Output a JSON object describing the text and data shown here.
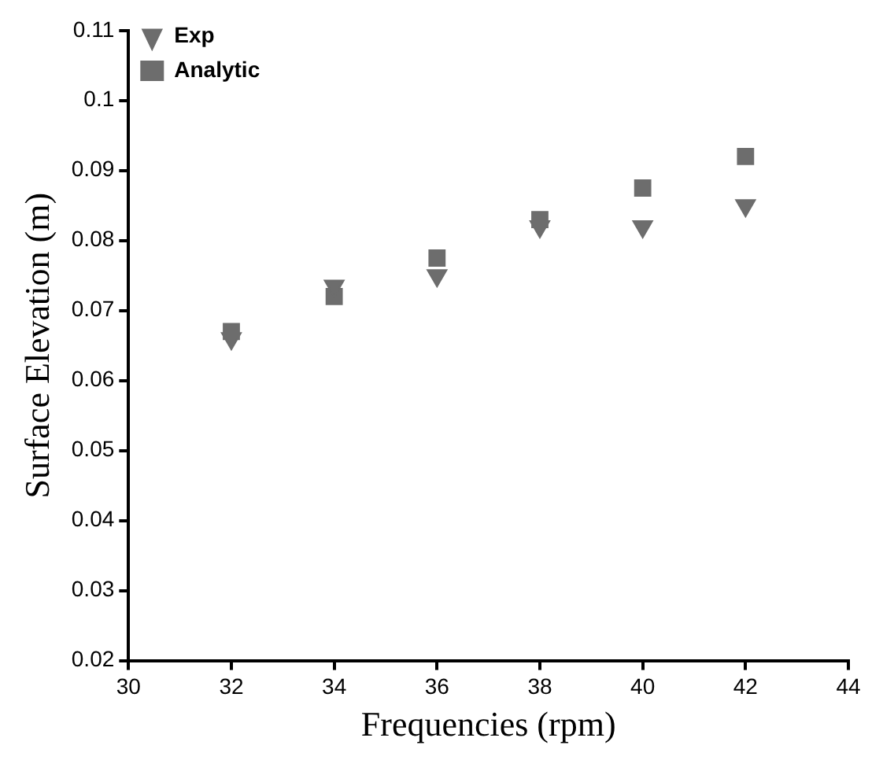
{
  "chart_data": {
    "type": "scatter",
    "xlabel": "Frequencies (rpm)",
    "ylabel": "Surface Elevation (m)",
    "x": [
      32,
      34,
      36,
      38,
      40,
      42
    ],
    "series": [
      {
        "name": "Exp",
        "color": "#6d6d6d",
        "marker": "triangle",
        "values": [
          0.066,
          0.0735,
          0.075,
          0.082,
          0.082,
          0.085
        ]
      },
      {
        "name": "Analytic",
        "color": "#6d6d6d",
        "marker": "square",
        "values": [
          0.067,
          0.072,
          0.0775,
          0.083,
          0.0875,
          0.092
        ]
      }
    ],
    "xlim": [
      30,
      44
    ],
    "xticks": [
      30,
      32,
      34,
      36,
      38,
      40,
      42,
      44
    ],
    "ylim": [
      0.02,
      0.11
    ],
    "yticks": [
      0.02,
      0.03,
      0.04,
      0.05,
      0.06,
      0.07,
      0.08,
      0.09,
      0.1,
      0.11
    ],
    "grid": false,
    "legend": "top left"
  }
}
